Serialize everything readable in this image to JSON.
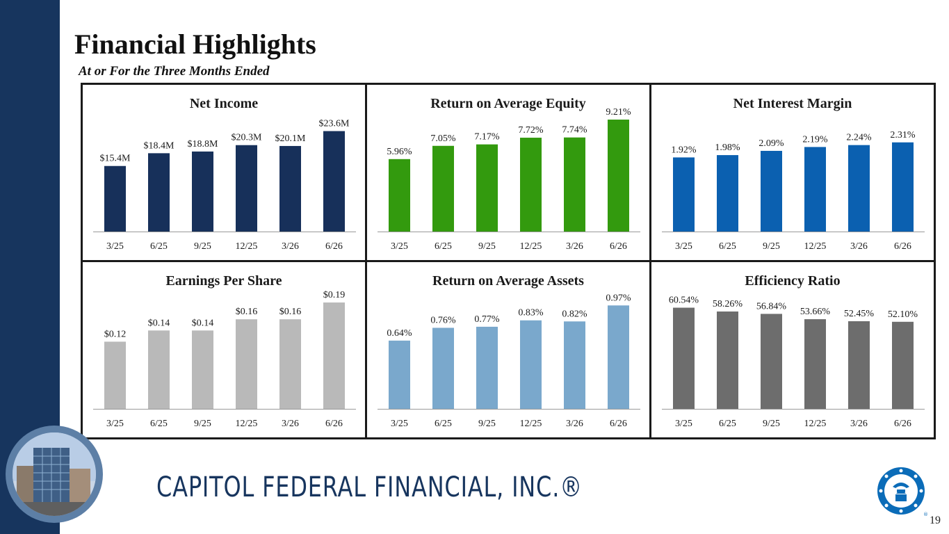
{
  "header": {
    "title": "Financial Highlights",
    "subtitle": "At or For the Three Months Ended"
  },
  "footer": {
    "brand": "CAPITOL FEDERAL FINANCIAL, INC.®",
    "page_number": "19"
  },
  "colors": {
    "left_bar": "#17355e",
    "net_income": "#17305a",
    "roe": "#339a0e",
    "nim": "#0b60b0",
    "eps": "#b9b9b9",
    "roa": "#7aa8cc",
    "efficiency": "#6d6d6d"
  },
  "chart_data": [
    {
      "type": "bar",
      "title": "Net Income",
      "categories": [
        "3/25",
        "6/25",
        "9/25",
        "12/25",
        "3/26",
        "6/26"
      ],
      "values": [
        15.4,
        18.4,
        18.8,
        20.3,
        20.1,
        23.6
      ],
      "labels": [
        "$15.4M",
        "$18.4M",
        "$18.8M",
        "$20.3M",
        "$20.1M",
        "$23.6M"
      ],
      "color": "#17305a",
      "ylim": [
        0,
        26.3
      ]
    },
    {
      "type": "bar",
      "title": "Return on Average Equity",
      "categories": [
        "3/25",
        "6/25",
        "9/25",
        "12/25",
        "3/26",
        "6/26"
      ],
      "values": [
        5.96,
        7.05,
        7.17,
        7.72,
        7.74,
        9.21
      ],
      "labels": [
        "5.96%",
        "7.05%",
        "7.17%",
        "7.72%",
        "7.74%",
        "9.21%"
      ],
      "color": "#339a0e",
      "ylim": [
        0,
        9.21
      ]
    },
    {
      "type": "bar",
      "title": "Net Interest Margin",
      "categories": [
        "3/25",
        "6/25",
        "9/25",
        "12/25",
        "3/26",
        "6/26"
      ],
      "values": [
        1.92,
        1.98,
        2.09,
        2.19,
        2.24,
        2.31
      ],
      "labels": [
        "1.92%",
        "1.98%",
        "2.09%",
        "2.19%",
        "2.24%",
        "2.31%"
      ],
      "color": "#0b60b0",
      "ylim": [
        0,
        2.9
      ]
    },
    {
      "type": "bar",
      "title": "Earnings Per Share",
      "categories": [
        "3/25",
        "6/25",
        "9/25",
        "12/25",
        "3/26",
        "6/26"
      ],
      "values": [
        0.12,
        0.14,
        0.14,
        0.16,
        0.16,
        0.19
      ],
      "labels": [
        "$0.12",
        "$0.14",
        "$0.14",
        "$0.16",
        "$0.16",
        "$0.19"
      ],
      "color": "#b9b9b9",
      "ylim": [
        0,
        0.2
      ]
    },
    {
      "type": "bar",
      "title": "Return on Average Assets",
      "categories": [
        "3/25",
        "6/25",
        "9/25",
        "12/25",
        "3/26",
        "6/26"
      ],
      "values": [
        0.64,
        0.76,
        0.77,
        0.83,
        0.82,
        0.97
      ],
      "labels": [
        "0.64%",
        "0.76%",
        "0.77%",
        "0.83%",
        "0.82%",
        "0.97%"
      ],
      "color": "#7aa8cc",
      "ylim": [
        0,
        1.05
      ]
    },
    {
      "type": "bar",
      "title": "Efficiency Ratio",
      "categories": [
        "3/25",
        "6/25",
        "9/25",
        "12/25",
        "3/26",
        "6/26"
      ],
      "values": [
        60.54,
        58.26,
        56.84,
        53.66,
        52.45,
        52.1
      ],
      "labels": [
        "60.54%",
        "58.26%",
        "56.84%",
        "53.66%",
        "52.45%",
        "52.10%"
      ],
      "color": "#6d6d6d",
      "ylim": [
        0,
        67
      ]
    }
  ]
}
